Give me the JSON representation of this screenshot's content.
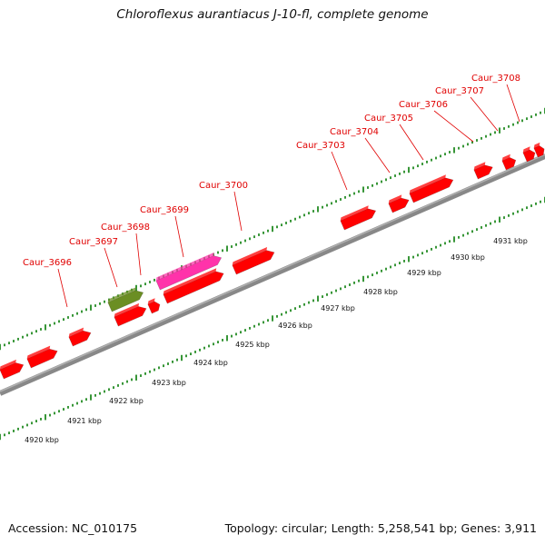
{
  "title": "Chloroflexus aurantiacus J-10-fl, complete genome",
  "footer": {
    "accession": "Accession: NC_010175",
    "info": "Topology: circular; Length: 5,258,541 bp; Genes: 3,911"
  },
  "colors": {
    "gene": "#ff0000",
    "gene_label": "#e00000",
    "rna": "#ff33aa",
    "other_feature": "#6b8e23",
    "backbone": "#888888",
    "tick": "#228b22"
  },
  "scale_labels": [
    "4920 kbp",
    "4921 kbp",
    "4922 kbp",
    "4923 kbp",
    "4924 kbp",
    "4925 kbp",
    "4926 kbp",
    "4927 kbp",
    "4928 kbp",
    "4929 kbp",
    "4930 kbp",
    "4931 kbp"
  ],
  "gene_labels": [
    "Caur_3696",
    "Caur_3697",
    "Caur_3698",
    "Caur_3699",
    "Caur_3700",
    "Caur_3703",
    "Caur_3704",
    "Caur_3705",
    "Caur_3706",
    "Caur_3707",
    "Caur_3708"
  ]
}
